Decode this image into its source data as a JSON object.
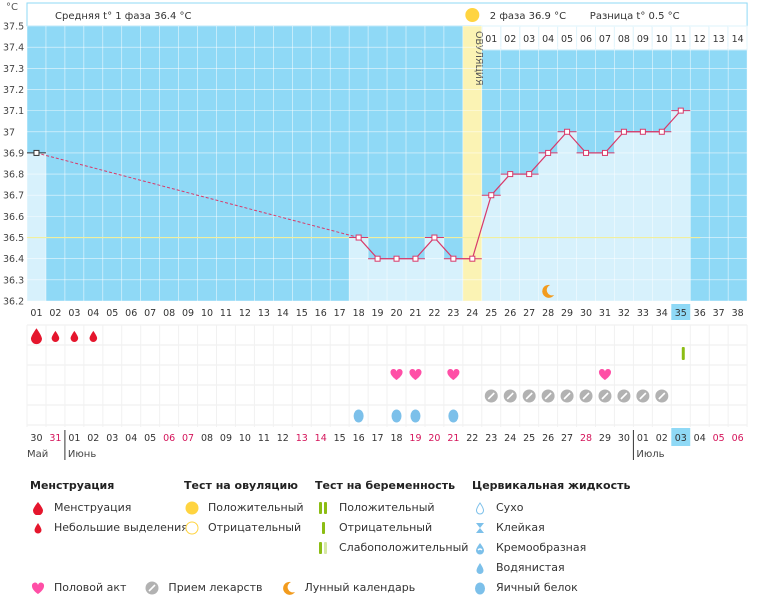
{
  "header": {
    "unit": "°C",
    "phase1_label": "Средняя t° 1 фаза",
    "phase1_value": "36.4 °C",
    "phase2_label": "2 фаза",
    "phase2_value": "36.9 °C",
    "diff_label": "Разница t°",
    "diff_value": "0.5 °C",
    "ovulation_label": "ОВУЛЯЦИЯ"
  },
  "colors": {
    "bg_sky": "#8fd9f6",
    "bar_fill": "#d7f1fc",
    "ovulation": "#fbf3b4",
    "line": "#d83a6a",
    "coverline": "#f1ef9e",
    "red": "#e5162d",
    "pink": "#ff4fa6",
    "gray": "#b2b2b2",
    "drop": "#7cc0ea",
    "green": "#8cbd14",
    "sun": "#ffd440",
    "moon": "#f29b1d"
  },
  "chart_data": {
    "type": "line",
    "title": "",
    "ylabel": "°C",
    "ylim": [
      36.2,
      37.5
    ],
    "yticks": [
      "37.5",
      "37.4",
      "37.3",
      "37.2",
      "37.1",
      "37",
      "36.9",
      "36.8",
      "36.7",
      "36.6",
      "36.5",
      "36.4",
      "36.3",
      "36.2"
    ],
    "cycle_days": [
      "01",
      "02",
      "03",
      "04",
      "05",
      "06",
      "07",
      "08",
      "09",
      "10",
      "11",
      "12",
      "13",
      "14",
      "15",
      "16",
      "17",
      "18",
      "19",
      "20",
      "21",
      "22",
      "23",
      "24",
      "25",
      "26",
      "27",
      "28",
      "29",
      "30",
      "31",
      "32",
      "33",
      "34",
      "35",
      "36",
      "37",
      "38"
    ],
    "phase2_days": [
      "01",
      "02",
      "03",
      "04",
      "05",
      "06",
      "07",
      "08",
      "09",
      "10",
      "11",
      "12",
      "13",
      "14"
    ],
    "phase2_start_cycle_day": 25,
    "ovulation_day": 24,
    "coverline": 36.5,
    "current_cycle_day": 35,
    "series": [
      {
        "values": [
          {
            "day": 1,
            "temp": 36.9
          },
          {
            "day": 18,
            "temp": 36.5
          },
          {
            "day": 19,
            "temp": 36.4
          },
          {
            "day": 20,
            "temp": 36.4
          },
          {
            "day": 21,
            "temp": 36.4
          },
          {
            "day": 22,
            "temp": 36.5
          },
          {
            "day": 23,
            "temp": 36.4
          },
          {
            "day": 24,
            "temp": 36.4
          },
          {
            "day": 25,
            "temp": 36.7
          },
          {
            "day": 26,
            "temp": 36.8
          },
          {
            "day": 27,
            "temp": 36.8
          },
          {
            "day": 28,
            "temp": 36.9
          },
          {
            "day": 29,
            "temp": 37.0
          },
          {
            "day": 30,
            "temp": 36.9
          },
          {
            "day": 31,
            "temp": 36.9
          },
          {
            "day": 32,
            "temp": 37.0
          },
          {
            "day": 33,
            "temp": 37.0
          },
          {
            "day": 34,
            "temp": 37.0
          },
          {
            "day": 35,
            "temp": 37.1
          }
        ]
      }
    ],
    "dates": [
      "30",
      "31",
      "01",
      "02",
      "03",
      "04",
      "05",
      "06",
      "07",
      "08",
      "09",
      "10",
      "11",
      "12",
      "13",
      "14",
      "15",
      "16",
      "17",
      "18",
      "19",
      "20",
      "21",
      "22",
      "23",
      "24",
      "25",
      "26",
      "27",
      "28",
      "29",
      "30",
      "01",
      "02",
      "03",
      "04",
      "05",
      "06"
    ],
    "red_dates": [
      2,
      8,
      9,
      15,
      16,
      21,
      22,
      23,
      30,
      37,
      38
    ],
    "highlight_date_index": 35,
    "months": [
      {
        "label": "Май",
        "col": 1
      },
      {
        "label": "Июнь",
        "col": 3
      },
      {
        "label": "Июль",
        "col": 33
      }
    ],
    "markers": {
      "menstruation": [
        1
      ],
      "spotting": [
        2,
        3,
        4
      ],
      "preg_test_positive": [
        35
      ],
      "intercourse": [
        20,
        21,
        23,
        31
      ],
      "medication": [
        25,
        26,
        27,
        28,
        29,
        30,
        31,
        32,
        33,
        34
      ],
      "egg_white": [
        18,
        20,
        21,
        23
      ],
      "moon": [
        28
      ],
      "ovulation_test_positive": [
        24
      ]
    }
  },
  "legend": {
    "menstruation": {
      "title": "Менструация",
      "items": [
        "Менструация",
        "Небольшие выделения"
      ]
    },
    "ovulation_test": {
      "title": "Тест на овуляцию",
      "items": [
        "Положительный",
        "Отрицательный"
      ]
    },
    "pregnancy_test": {
      "title": "Тест на беременность",
      "items": [
        "Положительный",
        "Отрицательный",
        "Слабоположительный"
      ]
    },
    "cervical": {
      "title": "Цервикальная жидкость",
      "items": [
        "Сухо",
        "Клейкая",
        "Кремообразная",
        "Водянистая",
        "Яичный белок"
      ]
    },
    "bottom": [
      "Половой акт",
      "Прием лекарств",
      "Лунный календарь"
    ]
  }
}
